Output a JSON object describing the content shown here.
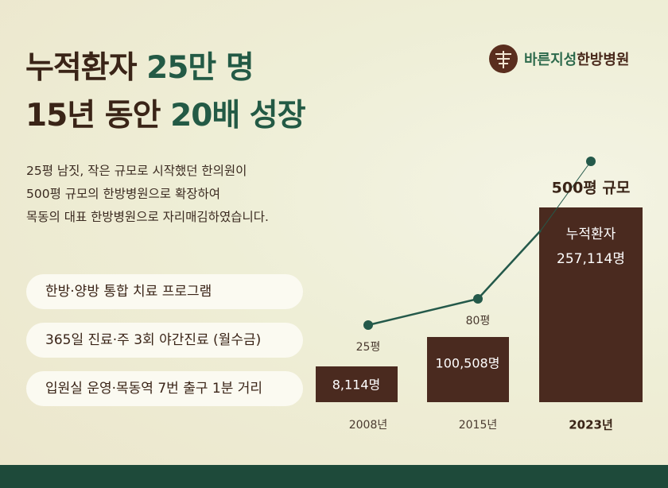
{
  "header": {
    "logo": {
      "accent": "바른지성",
      "rest": "한방병원"
    },
    "title": [
      {
        "text": "누적환자",
        "highlight": "25만 명"
      },
      {
        "text": "15년 동안",
        "highlight": "20배 성장"
      }
    ]
  },
  "intro": [
    "25평 남짓, 작은 규모로 시작했던 한의원이",
    "500평 규모의 한방병원으로 확장하여",
    "목동의 대표 한방병원으로 자리매김하였습니다."
  ],
  "features": [
    "한방·양방 통합 치료 프로그램",
    "365일 진료·주 3회 야간진료 (월수금)",
    "입원실 운영·목동역 7번 출구 1분 거리"
  ],
  "growth": [
    {
      "year": "2008년",
      "size": "25평",
      "patients": "8,114명"
    },
    {
      "year": "2015년",
      "size": "80평",
      "patients": "100,508명"
    },
    {
      "year": "2023년",
      "size": "500평 규모",
      "patients_label": "누적환자",
      "patients": "257,114명"
    }
  ]
}
